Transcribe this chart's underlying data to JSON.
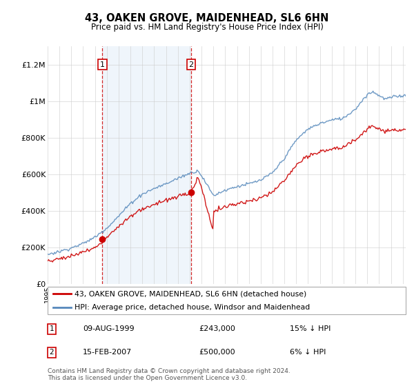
{
  "title": "43, OAKEN GROVE, MAIDENHEAD, SL6 6HN",
  "subtitle": "Price paid vs. HM Land Registry's House Price Index (HPI)",
  "legend_line1": "43, OAKEN GROVE, MAIDENHEAD, SL6 6HN (detached house)",
  "legend_line2": "HPI: Average price, detached house, Windsor and Maidenhead",
  "annotation1_date": "09-AUG-1999",
  "annotation1_price": "£243,000",
  "annotation1_hpi": "15% ↓ HPI",
  "annotation2_date": "15-FEB-2007",
  "annotation2_price": "£500,000",
  "annotation2_hpi": "6% ↓ HPI",
  "footer": "Contains HM Land Registry data © Crown copyright and database right 2024.\nThis data is licensed under the Open Government Licence v3.0.",
  "red_color": "#cc0000",
  "blue_color": "#5588bb",
  "shaded_color": "#ddeeff",
  "background_color": "#ffffff",
  "ylabel_ticks": [
    0,
    200000,
    400000,
    600000,
    800000,
    1000000,
    1200000
  ],
  "ylabel_labels": [
    "£0",
    "£200K",
    "£400K",
    "£600K",
    "£800K",
    "£1M",
    "£1.2M"
  ],
  "sale1_year": 1999.625,
  "sale1_price": 243000,
  "sale2_year": 2007.125,
  "sale2_price": 500000
}
